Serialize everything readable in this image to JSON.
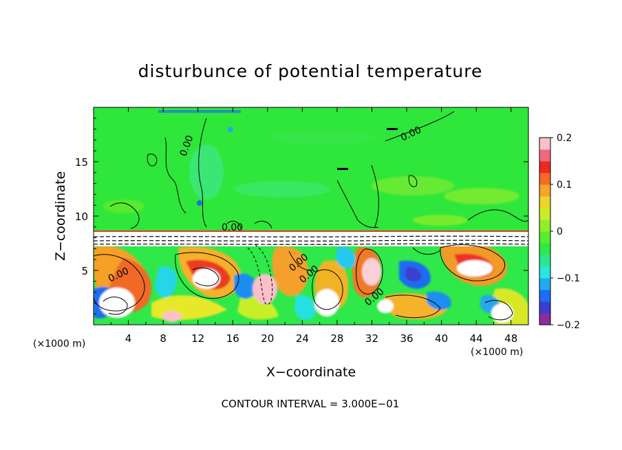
{
  "chart_data": {
    "type": "heatmap",
    "title": "disturbunce of potential temperature",
    "xlabel": "X−coordinate",
    "ylabel": "Z−coordinate",
    "x_unit_left": "(×1000 m)",
    "x_unit_right": "(×1000 m)",
    "footer": "CONTOUR INTERVAL = 3.000E−01",
    "contour_label": "0.00",
    "xlim": [
      0,
      50
    ],
    "ylim": [
      0,
      20
    ],
    "x_ticks": [
      4,
      8,
      12,
      16,
      20,
      24,
      28,
      32,
      36,
      40,
      44,
      48
    ],
    "y_ticks": [
      5,
      10,
      15
    ],
    "colorbar": {
      "range": [
        -0.2,
        0.2
      ],
      "tick_values": [
        0.2,
        0.1,
        0,
        -0.1,
        -0.2
      ],
      "tick_labels": [
        "0.2",
        "0.1",
        "0",
        "−0.1",
        "−0.2"
      ],
      "colors": [
        "#8c2c9e",
        "#3a3fd0",
        "#1c6df2",
        "#25a8f0",
        "#27e6e0",
        "#2be890",
        "#2fe84a",
        "#58ec2c",
        "#92ee2a",
        "#c8ee28",
        "#ecd42a",
        "#f7a428",
        "#f66a26",
        "#ec2a22",
        "#f06a7e",
        "#fbc0c8"
      ]
    },
    "regions": {
      "upper_layer": {
        "z_range": [
          8.6,
          20
        ],
        "value": 0.0,
        "note": "near-zero disturbance above about 8.7 km"
      },
      "lower_layer": {
        "z_range": [
          0,
          8.6
        ],
        "value_range": [
          -0.2,
          0.2
        ],
        "note": "turbulent mixing with strong +/- anomalies below about 8.7 km"
      }
    }
  }
}
